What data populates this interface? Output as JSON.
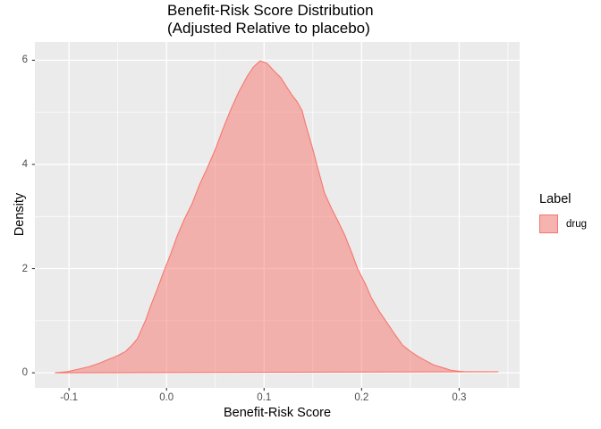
{
  "chart_data": {
    "type": "area",
    "title": "Benefit-Risk Score Distribution",
    "subtitle": "(Adjusted Relative to placebo)",
    "xlabel": "Benefit-Risk Score",
    "ylabel": "Density",
    "legend_title": "Label",
    "legend_position": "right",
    "grid": true,
    "panel_bg": "#EBEBEB",
    "grid_color": "#FFFFFF",
    "tick_color": "#333333",
    "tick_label_color": "#4D4D4D",
    "legend_key_bg": "#F2F2F2",
    "xlim": [
      -0.135,
      0.362
    ],
    "ylim": [
      -0.29,
      6.35
    ],
    "x_breaks": [
      -0.1,
      0.0,
      0.1,
      0.2,
      0.3
    ],
    "x_tick_labels": [
      "-0.1",
      "0.0",
      "0.1",
      "0.2",
      "0.3"
    ],
    "x_minor": [
      -0.05,
      0.05,
      0.15,
      0.25,
      0.35
    ],
    "y_breaks": [
      0,
      2,
      4,
      6
    ],
    "y_tick_labels": [
      "0",
      "2",
      "4",
      "6"
    ],
    "y_minor": [
      1,
      3,
      5
    ],
    "series": [
      {
        "name": "drug",
        "color": "#F8766D",
        "fill_opacity": 0.5,
        "points": [
          [
            -0.114,
            0.0
          ],
          [
            -0.102,
            0.02
          ],
          [
            -0.09,
            0.07
          ],
          [
            -0.079,
            0.12
          ],
          [
            -0.068,
            0.19
          ],
          [
            -0.059,
            0.26
          ],
          [
            -0.05,
            0.33
          ],
          [
            -0.042,
            0.41
          ],
          [
            -0.036,
            0.52
          ],
          [
            -0.03,
            0.65
          ],
          [
            -0.026,
            0.82
          ],
          [
            -0.021,
            1.03
          ],
          [
            -0.016,
            1.3
          ],
          [
            -0.01,
            1.58
          ],
          [
            -0.004,
            1.89
          ],
          [
            0.004,
            2.27
          ],
          [
            0.011,
            2.63
          ],
          [
            0.018,
            2.94
          ],
          [
            0.026,
            3.24
          ],
          [
            0.034,
            3.62
          ],
          [
            0.041,
            3.9
          ],
          [
            0.05,
            4.29
          ],
          [
            0.058,
            4.69
          ],
          [
            0.066,
            5.06
          ],
          [
            0.074,
            5.39
          ],
          [
            0.083,
            5.7
          ],
          [
            0.089,
            5.87
          ],
          [
            0.096,
            5.99
          ],
          [
            0.103,
            5.94
          ],
          [
            0.11,
            5.8
          ],
          [
            0.117,
            5.67
          ],
          [
            0.123,
            5.49
          ],
          [
            0.129,
            5.32
          ],
          [
            0.134,
            5.2
          ],
          [
            0.139,
            5.03
          ],
          [
            0.143,
            4.74
          ],
          [
            0.149,
            4.36
          ],
          [
            0.155,
            3.93
          ],
          [
            0.162,
            3.45
          ],
          [
            0.169,
            3.16
          ],
          [
            0.175,
            2.94
          ],
          [
            0.183,
            2.63
          ],
          [
            0.19,
            2.3
          ],
          [
            0.196,
            1.99
          ],
          [
            0.204,
            1.7
          ],
          [
            0.21,
            1.44
          ],
          [
            0.218,
            1.18
          ],
          [
            0.226,
            0.96
          ],
          [
            0.234,
            0.74
          ],
          [
            0.242,
            0.53
          ],
          [
            0.25,
            0.41
          ],
          [
            0.258,
            0.31
          ],
          [
            0.267,
            0.22
          ],
          [
            0.274,
            0.15
          ],
          [
            0.283,
            0.1
          ],
          [
            0.291,
            0.05
          ],
          [
            0.299,
            0.03
          ],
          [
            0.306,
            0.02
          ],
          [
            0.32,
            0.02
          ],
          [
            0.331,
            0.02
          ],
          [
            0.34,
            0.02
          ]
        ]
      }
    ]
  }
}
